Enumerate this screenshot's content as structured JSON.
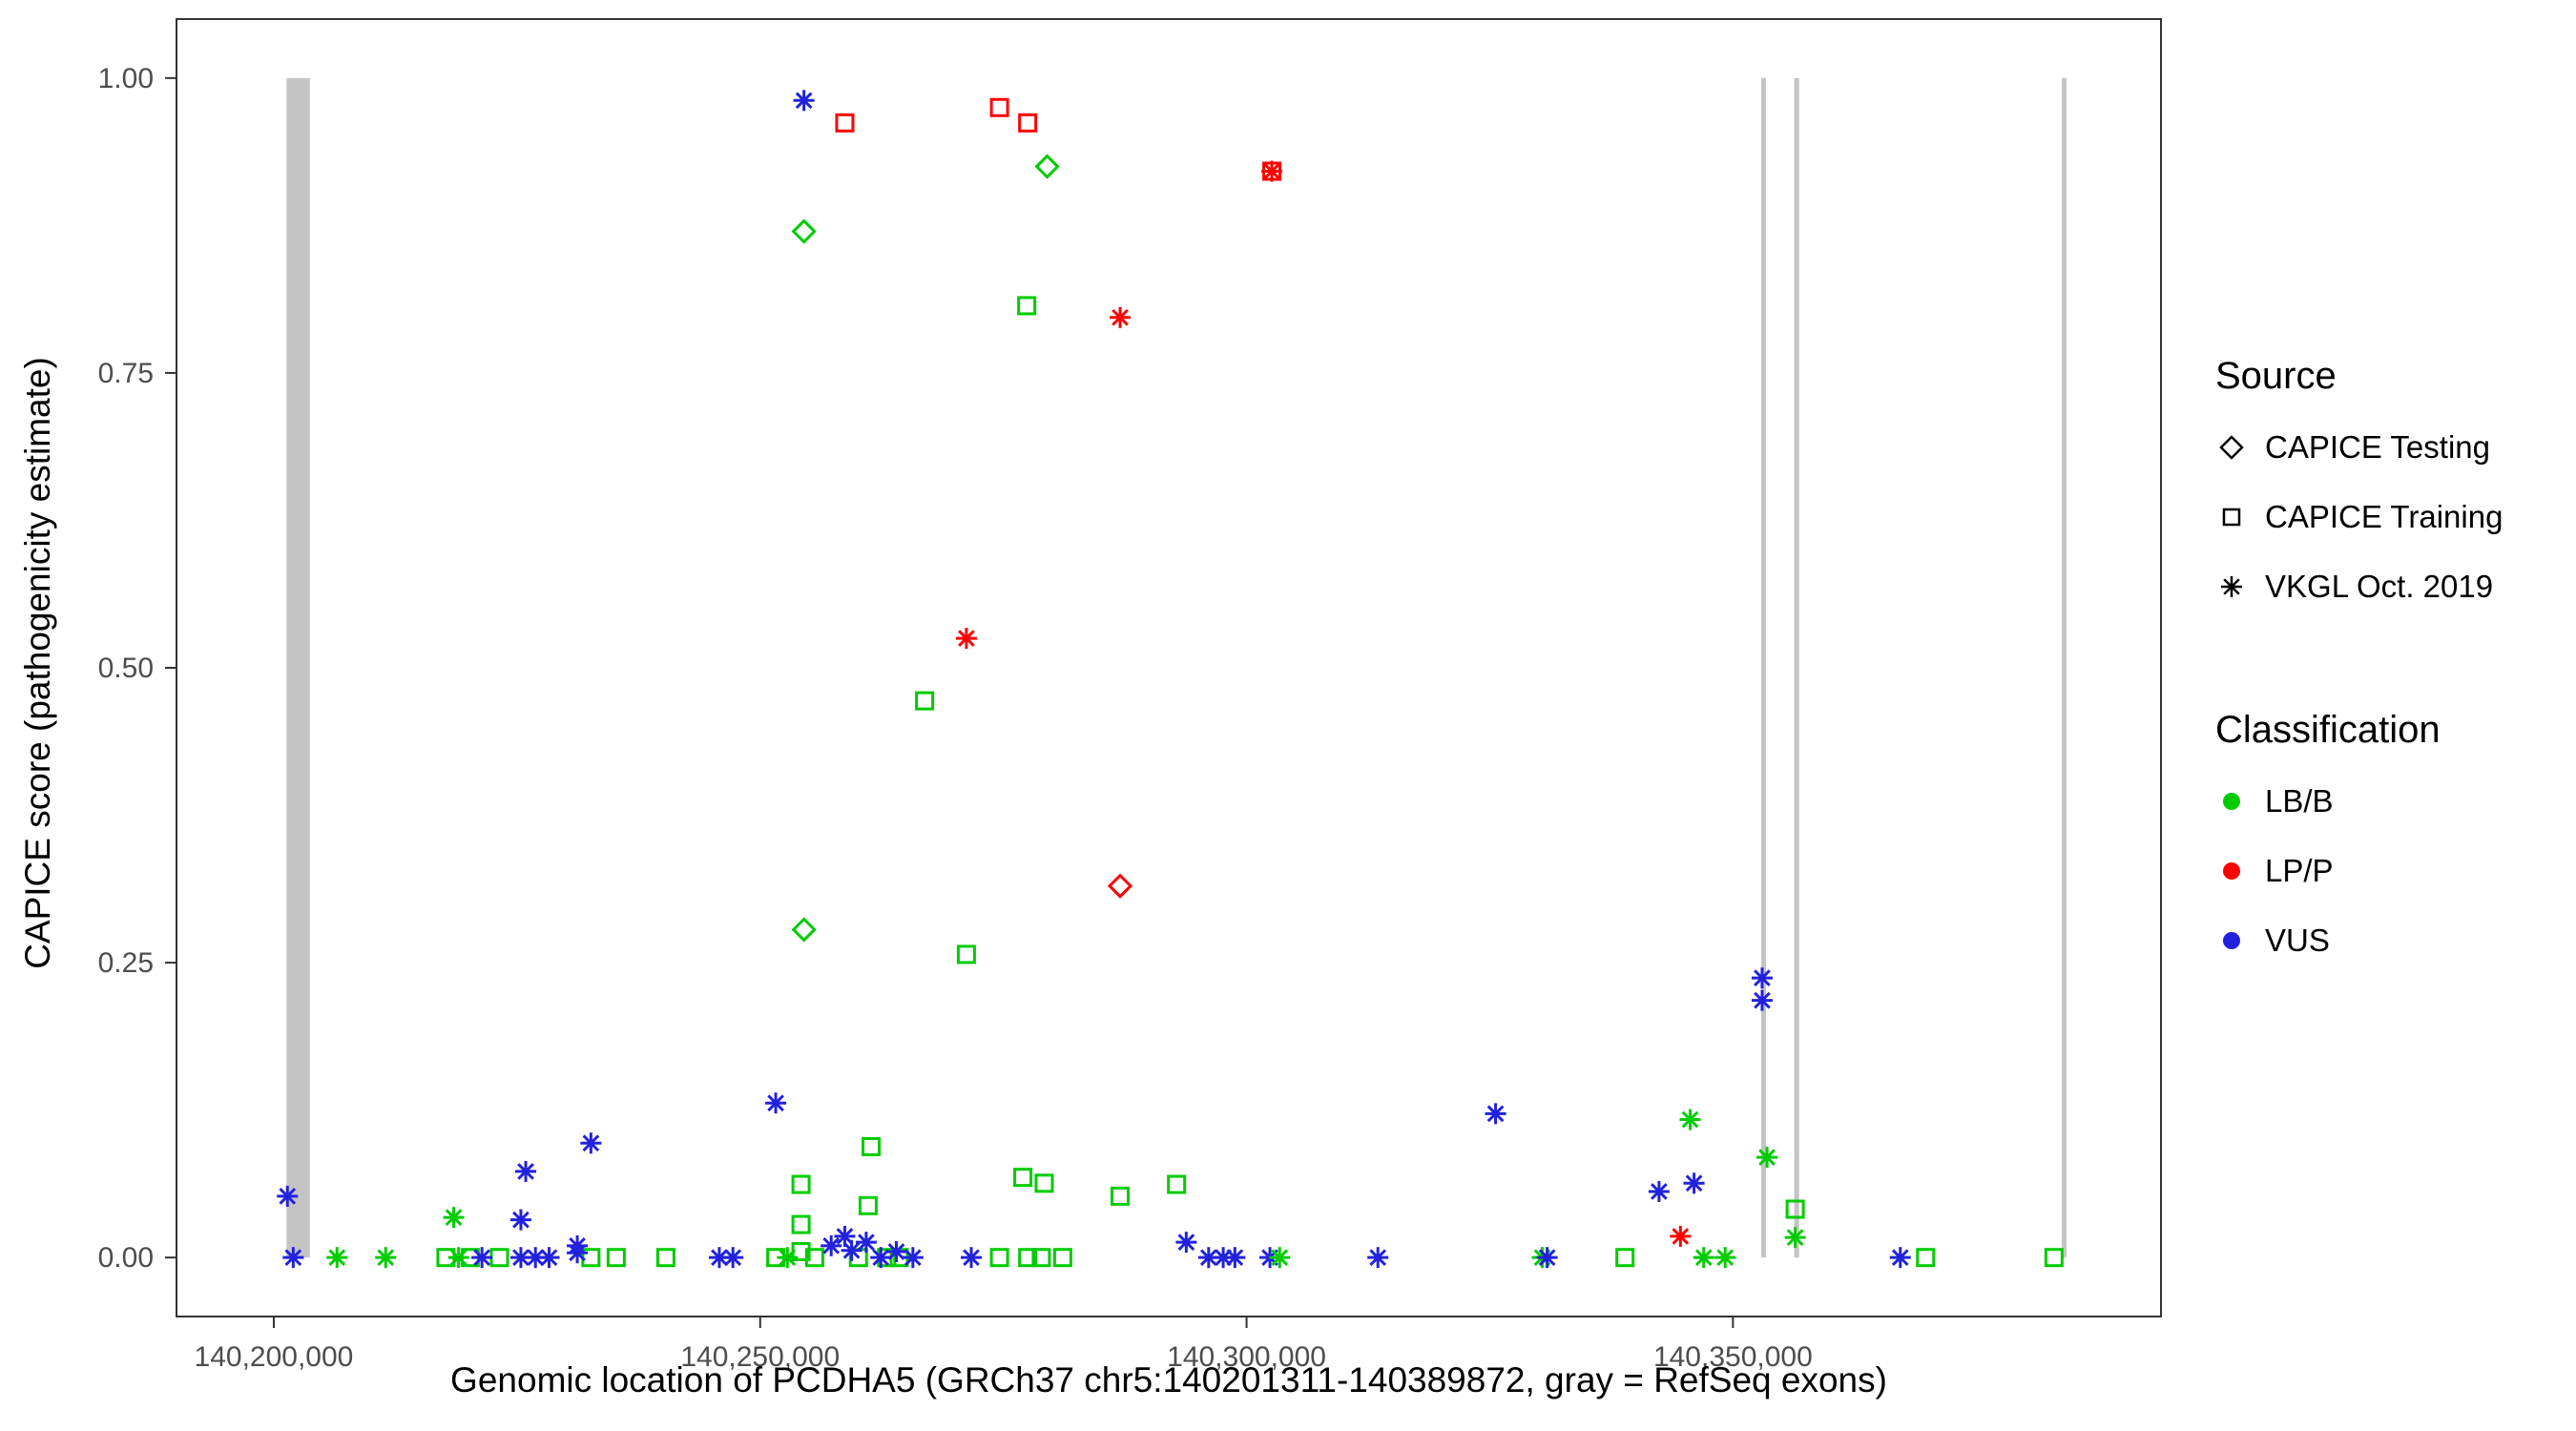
{
  "chart_data": {
    "type": "scatter",
    "title": "",
    "xlabel": "Genomic location of PCDHA5 (GRCh37 chr5:140201311-140389872, gray = RefSeq exons)",
    "ylabel": "CAPICE score (pathogenicity estimate)",
    "xlim": [
      140190000,
      140394000
    ],
    "ylim": [
      -0.05,
      1.05
    ],
    "grid": "off",
    "legend_position": "right",
    "x_ticks": [
      {
        "value": 140200000,
        "label": "140,200,000"
      },
      {
        "value": 140250000,
        "label": "140,250,000"
      },
      {
        "value": 140300000,
        "label": "140,300,000"
      },
      {
        "value": 140350000,
        "label": "140,350,000"
      }
    ],
    "y_ticks": [
      {
        "value": 0.0,
        "label": "0.00"
      },
      {
        "value": 0.25,
        "label": "0.25"
      },
      {
        "value": 0.5,
        "label": "0.50"
      },
      {
        "value": 0.75,
        "label": "0.75"
      },
      {
        "value": 1.0,
        "label": "1.00"
      }
    ],
    "exons_note": "gray vertical bars = RefSeq exons, drawn from y=0 to y=1",
    "exons": [
      {
        "start": 140201311,
        "end": 140203712
      },
      {
        "start": 140352900,
        "end": 140353400
      },
      {
        "start": 140356300,
        "end": 140356800
      },
      {
        "start": 140383800,
        "end": 140384300
      }
    ],
    "source_markers": {
      "testing": "diamond",
      "training": "square",
      "vkgl": "asterisk"
    },
    "points": [
      {
        "x": 140279500,
        "y": 0.925,
        "s": "testing",
        "c": "LB/B"
      },
      {
        "x": 140254500,
        "y": 0.87,
        "s": "testing",
        "c": "LB/B"
      },
      {
        "x": 140254500,
        "y": 0.278,
        "s": "testing",
        "c": "LB/B"
      },
      {
        "x": 140287000,
        "y": 0.315,
        "s": "testing",
        "c": "LP/P"
      },
      {
        "x": 140258700,
        "y": 0.962,
        "s": "training",
        "c": "LP/P"
      },
      {
        "x": 140274600,
        "y": 0.975,
        "s": "training",
        "c": "LP/P"
      },
      {
        "x": 140277500,
        "y": 0.962,
        "s": "training",
        "c": "LP/P"
      },
      {
        "x": 140302600,
        "y": 0.921,
        "s": "training",
        "c": "LP/P"
      },
      {
        "x": 140277400,
        "y": 0.807,
        "s": "training",
        "c": "LB/B"
      },
      {
        "x": 140266900,
        "y": 0.472,
        "s": "training",
        "c": "LB/B"
      },
      {
        "x": 140271200,
        "y": 0.257,
        "s": "training",
        "c": "LB/B"
      },
      {
        "x": 140261400,
        "y": 0.094,
        "s": "training",
        "c": "LB/B"
      },
      {
        "x": 140254200,
        "y": 0.062,
        "s": "training",
        "c": "LB/B"
      },
      {
        "x": 140277000,
        "y": 0.068,
        "s": "training",
        "c": "LB/B"
      },
      {
        "x": 140279200,
        "y": 0.063,
        "s": "training",
        "c": "LB/B"
      },
      {
        "x": 140292800,
        "y": 0.062,
        "s": "training",
        "c": "LB/B"
      },
      {
        "x": 140287000,
        "y": 0.052,
        "s": "training",
        "c": "LB/B"
      },
      {
        "x": 140261100,
        "y": 0.044,
        "s": "training",
        "c": "LB/B"
      },
      {
        "x": 140356400,
        "y": 0.041,
        "s": "training",
        "c": "LB/B"
      },
      {
        "x": 140254200,
        "y": 0.028,
        "s": "training",
        "c": "LB/B"
      },
      {
        "x": 140217700,
        "y": 0.0,
        "s": "training",
        "c": "LB/B"
      },
      {
        "x": 140220200,
        "y": 0.0,
        "s": "training",
        "c": "LB/B"
      },
      {
        "x": 140223200,
        "y": 0.0,
        "s": "training",
        "c": "LB/B"
      },
      {
        "x": 140232600,
        "y": 0.0,
        "s": "training",
        "c": "LB/B"
      },
      {
        "x": 140235200,
        "y": 0.0,
        "s": "training",
        "c": "LB/B"
      },
      {
        "x": 140240300,
        "y": 0.0,
        "s": "training",
        "c": "LB/B"
      },
      {
        "x": 140251600,
        "y": 0.0,
        "s": "training",
        "c": "LB/B"
      },
      {
        "x": 140254200,
        "y": 0.005,
        "s": "training",
        "c": "LB/B"
      },
      {
        "x": 140255600,
        "y": 0.0,
        "s": "training",
        "c": "LB/B"
      },
      {
        "x": 140260100,
        "y": 0.0,
        "s": "training",
        "c": "LB/B"
      },
      {
        "x": 140263000,
        "y": 0.0,
        "s": "training",
        "c": "LB/B"
      },
      {
        "x": 140264300,
        "y": 0.0,
        "s": "training",
        "c": "LB/B"
      },
      {
        "x": 140274600,
        "y": 0.0,
        "s": "training",
        "c": "LB/B"
      },
      {
        "x": 140277500,
        "y": 0.0,
        "s": "training",
        "c": "LB/B"
      },
      {
        "x": 140278900,
        "y": 0.0,
        "s": "training",
        "c": "LB/B"
      },
      {
        "x": 140281100,
        "y": 0.0,
        "s": "training",
        "c": "LB/B"
      },
      {
        "x": 140338900,
        "y": 0.0,
        "s": "training",
        "c": "LB/B"
      },
      {
        "x": 140369800,
        "y": 0.0,
        "s": "training",
        "c": "LB/B"
      },
      {
        "x": 140383000,
        "y": 0.0,
        "s": "training",
        "c": "LB/B"
      },
      {
        "x": 140254500,
        "y": 0.981,
        "s": "vkgl",
        "c": "VUS"
      },
      {
        "x": 140287000,
        "y": 0.797,
        "s": "vkgl",
        "c": "LP/P"
      },
      {
        "x": 140302600,
        "y": 0.921,
        "s": "vkgl",
        "c": "LP/P"
      },
      {
        "x": 140271200,
        "y": 0.525,
        "s": "vkgl",
        "c": "LP/P"
      },
      {
        "x": 140353000,
        "y": 0.237,
        "s": "vkgl",
        "c": "VUS"
      },
      {
        "x": 140353000,
        "y": 0.218,
        "s": "vkgl",
        "c": "VUS"
      },
      {
        "x": 140251600,
        "y": 0.131,
        "s": "vkgl",
        "c": "VUS"
      },
      {
        "x": 140325600,
        "y": 0.122,
        "s": "vkgl",
        "c": "VUS"
      },
      {
        "x": 140345600,
        "y": 0.117,
        "s": "vkgl",
        "c": "LB/B"
      },
      {
        "x": 140232600,
        "y": 0.097,
        "s": "vkgl",
        "c": "VUS"
      },
      {
        "x": 140353500,
        "y": 0.085,
        "s": "vkgl",
        "c": "LB/B"
      },
      {
        "x": 140225900,
        "y": 0.073,
        "s": "vkgl",
        "c": "VUS"
      },
      {
        "x": 140342400,
        "y": 0.056,
        "s": "vkgl",
        "c": "VUS"
      },
      {
        "x": 140346000,
        "y": 0.063,
        "s": "vkgl",
        "c": "VUS"
      },
      {
        "x": 140201400,
        "y": 0.052,
        "s": "vkgl",
        "c": "VUS"
      },
      {
        "x": 140218500,
        "y": 0.034,
        "s": "vkgl",
        "c": "LB/B"
      },
      {
        "x": 140225400,
        "y": 0.032,
        "s": "vkgl",
        "c": "VUS"
      },
      {
        "x": 140344600,
        "y": 0.018,
        "s": "vkgl",
        "c": "LP/P"
      },
      {
        "x": 140356400,
        "y": 0.017,
        "s": "vkgl",
        "c": "LB/B"
      },
      {
        "x": 140293800,
        "y": 0.013,
        "s": "vkgl",
        "c": "VUS"
      },
      {
        "x": 140231200,
        "y": 0.01,
        "s": "vkgl",
        "c": "VUS"
      },
      {
        "x": 140202000,
        "y": 0.0,
        "s": "vkgl",
        "c": "VUS"
      },
      {
        "x": 140206500,
        "y": 0.0,
        "s": "vkgl",
        "c": "LB/B"
      },
      {
        "x": 140211500,
        "y": 0.0,
        "s": "vkgl",
        "c": "LB/B"
      },
      {
        "x": 140219000,
        "y": 0.0,
        "s": "vkgl",
        "c": "LB/B"
      },
      {
        "x": 140221400,
        "y": 0.0,
        "s": "vkgl",
        "c": "VUS"
      },
      {
        "x": 140225400,
        "y": 0.0,
        "s": "vkgl",
        "c": "VUS"
      },
      {
        "x": 140226900,
        "y": 0.0,
        "s": "vkgl",
        "c": "VUS"
      },
      {
        "x": 140228300,
        "y": 0.0,
        "s": "vkgl",
        "c": "VUS"
      },
      {
        "x": 140231200,
        "y": 0.004,
        "s": "vkgl",
        "c": "VUS"
      },
      {
        "x": 140245800,
        "y": 0.0,
        "s": "vkgl",
        "c": "VUS"
      },
      {
        "x": 140247200,
        "y": 0.0,
        "s": "vkgl",
        "c": "VUS"
      },
      {
        "x": 140252800,
        "y": 0.0,
        "s": "vkgl",
        "c": "LB/B"
      },
      {
        "x": 140257300,
        "y": 0.01,
        "s": "vkgl",
        "c": "VUS"
      },
      {
        "x": 140258700,
        "y": 0.018,
        "s": "vkgl",
        "c": "VUS"
      },
      {
        "x": 140259400,
        "y": 0.006,
        "s": "vkgl",
        "c": "VUS"
      },
      {
        "x": 140260900,
        "y": 0.013,
        "s": "vkgl",
        "c": "VUS"
      },
      {
        "x": 140262400,
        "y": 0.0,
        "s": "vkgl",
        "c": "VUS"
      },
      {
        "x": 140264000,
        "y": 0.005,
        "s": "vkgl",
        "c": "VUS"
      },
      {
        "x": 140265700,
        "y": 0.0,
        "s": "vkgl",
        "c": "VUS"
      },
      {
        "x": 140271700,
        "y": 0.0,
        "s": "vkgl",
        "c": "VUS"
      },
      {
        "x": 140296100,
        "y": 0.0,
        "s": "vkgl",
        "c": "VUS"
      },
      {
        "x": 140297600,
        "y": 0.0,
        "s": "vkgl",
        "c": "VUS"
      },
      {
        "x": 140298800,
        "y": 0.0,
        "s": "vkgl",
        "c": "VUS"
      },
      {
        "x": 140302400,
        "y": 0.0,
        "s": "vkgl",
        "c": "VUS"
      },
      {
        "x": 140303400,
        "y": 0.0,
        "s": "vkgl",
        "c": "LB/B"
      },
      {
        "x": 140313500,
        "y": 0.0,
        "s": "vkgl",
        "c": "VUS"
      },
      {
        "x": 140330400,
        "y": 0.0,
        "s": "vkgl",
        "c": "LB/B"
      },
      {
        "x": 140330900,
        "y": 0.0,
        "s": "vkgl",
        "c": "VUS"
      },
      {
        "x": 140347000,
        "y": 0.0,
        "s": "vkgl",
        "c": "LB/B"
      },
      {
        "x": 140349200,
        "y": 0.0,
        "s": "vkgl",
        "c": "LB/B"
      },
      {
        "x": 140367200,
        "y": 0.0,
        "s": "vkgl",
        "c": "VUS"
      }
    ]
  },
  "legend": {
    "source": {
      "title": "Source",
      "items": [
        {
          "label": "CAPICE Testing",
          "marker": "diamond"
        },
        {
          "label": "CAPICE Training",
          "marker": "square"
        },
        {
          "label": "VKGL Oct. 2019",
          "marker": "asterisk"
        }
      ]
    },
    "classification": {
      "title": "Classification",
      "items": [
        {
          "label": "LB/B",
          "color": "#00CC00"
        },
        {
          "label": "LP/P",
          "color": "#FF0000"
        },
        {
          "label": "VUS",
          "color": "#2222DD"
        }
      ]
    }
  },
  "colors": {
    "exon": "#C4C4C4",
    "panel_border": "#333333",
    "tick": "#333333",
    "tick_text": "#4D4D4D",
    "classification": {
      "LB/B": "#00CC00",
      "LP/P": "#FF0000",
      "VUS": "#2222DD"
    }
  }
}
